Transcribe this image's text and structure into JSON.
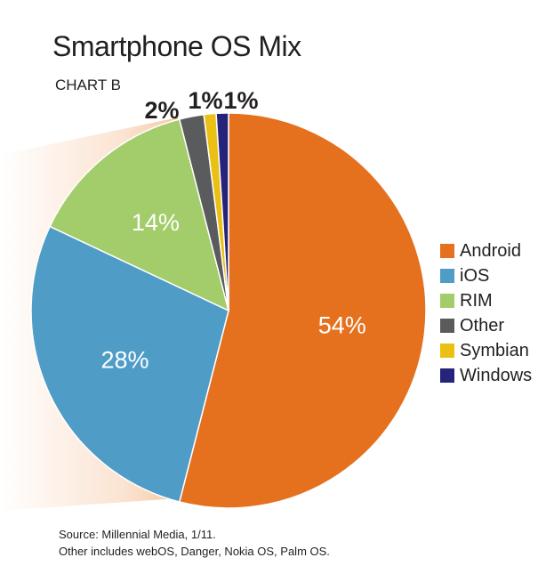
{
  "title": "Smartphone OS Mix",
  "subtitle": "CHART B",
  "chart_data": {
    "type": "pie",
    "title": "Smartphone OS Mix",
    "subtitle": "CHART B",
    "categories": [
      "Android",
      "iOS",
      "RIM",
      "Other",
      "Symbian",
      "Windows"
    ],
    "values": [
      54,
      28,
      14,
      2,
      1,
      1
    ],
    "labels": [
      "54%",
      "28%",
      "14%",
      "2%",
      "1%",
      "1%"
    ],
    "colors": [
      "#e5711f",
      "#4f9cc7",
      "#a3cc6a",
      "#5a5b5d",
      "#e9c013",
      "#24247a"
    ],
    "label_colors": [
      "#ffffff",
      "#ffffff",
      "#ffffff",
      "#231f20",
      "#231f20",
      "#231f20"
    ],
    "start_angle_deg": 0,
    "legend_position": "right"
  },
  "source": {
    "line1": "Source: Millennial Media, 1/11.",
    "line2": "Other includes webOS, Danger, Nokia OS, Palm OS."
  }
}
